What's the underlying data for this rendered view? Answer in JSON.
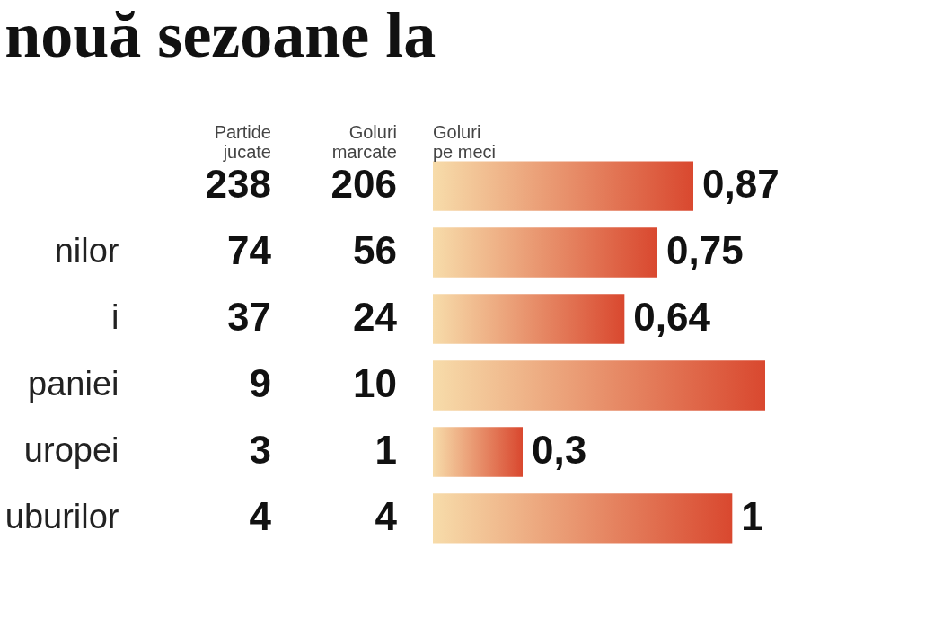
{
  "chart_data": {
    "type": "bar",
    "orientation": "horizontal",
    "title": "nouă sezoane la",
    "categories": [
      null,
      "nilor",
      "i",
      "paniei",
      "uropei",
      "uburilor"
    ],
    "values": [
      0.87,
      0.75,
      0.64,
      1.11,
      0.3,
      1
    ],
    "value_labels": [
      "0,87",
      "0,75",
      "0,64",
      null,
      "0,3",
      "1"
    ],
    "color": "#d9482f",
    "annotations": [
      "Partide jucate",
      "Goluri marcate",
      "Goluri pe meci",
      "238",
      "206",
      "74",
      "56",
      "37",
      "24",
      "9",
      "10",
      "3",
      "1",
      "4",
      "4"
    ]
  }
}
